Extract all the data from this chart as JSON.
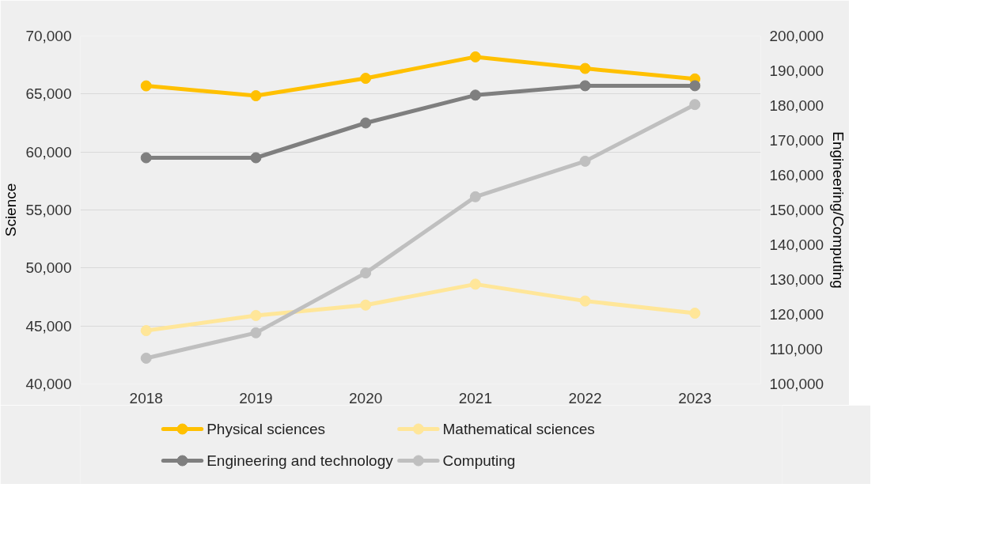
{
  "chart_data": {
    "type": "line",
    "ylabel": "Science",
    "y2label": "Engineering/Computing",
    "categories": [
      "2018",
      "2019",
      "2020",
      "2021",
      "2022",
      "2023"
    ],
    "ylim": [
      40000,
      70000
    ],
    "yticks": [
      {
        "value": 40000,
        "label": "40,000"
      },
      {
        "value": 45000,
        "label": "45,000"
      },
      {
        "value": 50000,
        "label": "50,000"
      },
      {
        "value": 55000,
        "label": "55,000"
      },
      {
        "value": 60000,
        "label": "60,000"
      },
      {
        "value": 65000,
        "label": "65,000"
      },
      {
        "value": 70000,
        "label": "70,000"
      }
    ],
    "y2lim": [
      100000,
      200000
    ],
    "y2ticks": [
      {
        "value": 100000,
        "label": "100,000"
      },
      {
        "value": 110000,
        "label": "110,000"
      },
      {
        "value": 120000,
        "label": "120,000"
      },
      {
        "value": 130000,
        "label": "130,000"
      },
      {
        "value": 140000,
        "label": "140,000"
      },
      {
        "value": 150000,
        "label": "150,000"
      },
      {
        "value": 160000,
        "label": "160,000"
      },
      {
        "value": 170000,
        "label": "170,000"
      },
      {
        "value": 180000,
        "label": "180,000"
      },
      {
        "value": 190000,
        "label": "190,000"
      },
      {
        "value": 200000,
        "label": "200,000"
      }
    ],
    "grid": "y",
    "legend": "bottom",
    "marker": "circle",
    "line_style": "solid",
    "series": [
      {
        "name": "Physical sciences",
        "color": "#ffc000",
        "values": [
          65700,
          64850,
          66350,
          68200,
          67200,
          66300
        ]
      },
      {
        "name": "Mathematical sciences",
        "color": "#ffe699",
        "values": [
          44600,
          45900,
          46800,
          48600,
          47150,
          46100
        ]
      },
      {
        "name": "Engineering and technology",
        "color": "#7f7f7f",
        "axis": "y2",
        "values": [
          165000,
          165000,
          175000,
          183000,
          185700,
          185700
        ]
      },
      {
        "name": "Computing",
        "color": "#bfbfbf",
        "axis": "y2",
        "values": [
          107400,
          114700,
          131900,
          153800,
          164000,
          180300
        ]
      }
    ]
  }
}
